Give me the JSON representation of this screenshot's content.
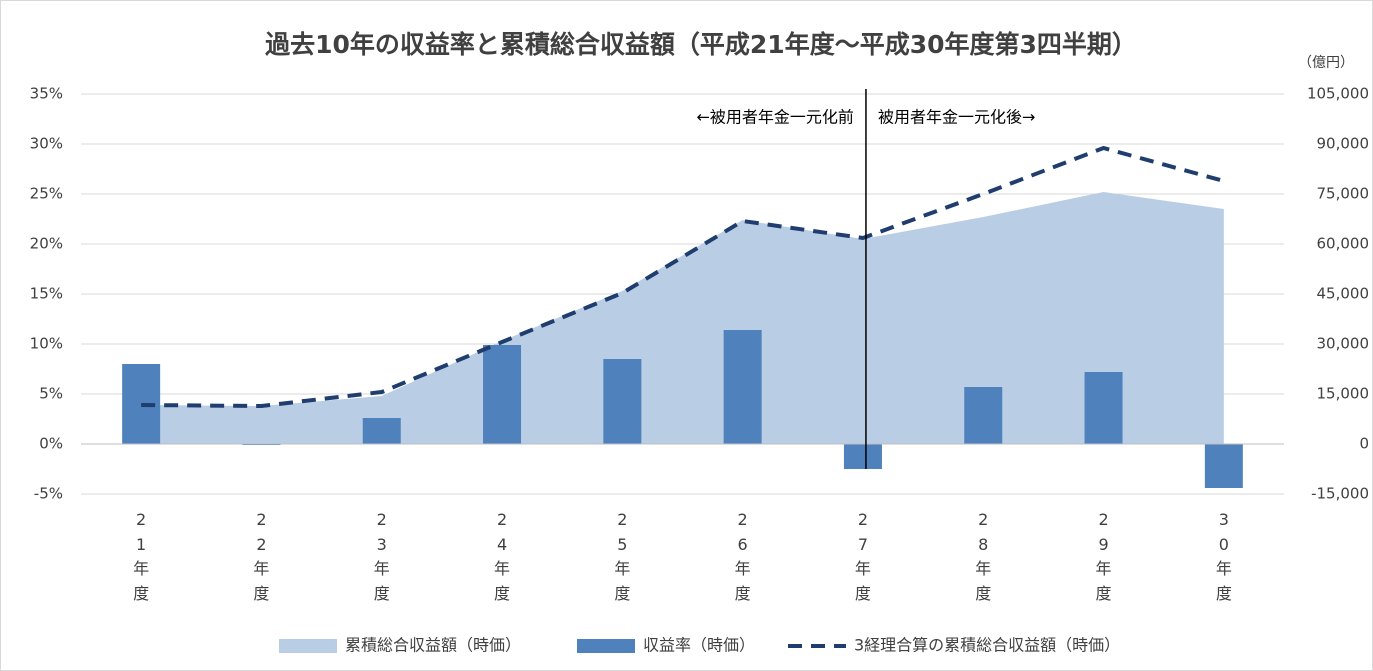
{
  "chart_data": {
    "type": "combo",
    "title": "過去10年の収益率と累積総合収益額（平成21年度～平成30年度第3四半期）",
    "y2_label": "（億円）",
    "annotations": [
      "←被用者年金一元化前",
      "被用者年金一元化後→"
    ],
    "categories": [
      "21年度",
      "22年度",
      "23年度",
      "24年度",
      "25年度",
      "26年度",
      "27年度",
      "28年度",
      "29年度",
      "30年度"
    ],
    "series": [
      {
        "name": "累積総合収益額（時価）",
        "type": "area",
        "axis": "y2",
        "color": "#b9cde5",
        "values": [
          11700,
          11400,
          14400,
          30900,
          45900,
          67200,
          61500,
          68100,
          75600,
          70500
        ]
      },
      {
        "name": "収益率（時価）",
        "type": "bar",
        "axis": "y",
        "color": "#4f81bd",
        "values": [
          8.0,
          -0.1,
          2.6,
          9.9,
          8.5,
          11.4,
          -2.5,
          5.7,
          7.2,
          -4.4
        ]
      },
      {
        "name": "3経理合算の累積総合収益額（時価）",
        "type": "line",
        "axis": "y2",
        "color": "#1f3d6e",
        "dashed": true,
        "values": [
          11700,
          11400,
          15600,
          30600,
          45300,
          66900,
          61800,
          75000,
          88800,
          78900
        ]
      }
    ],
    "ylim": [
      -5,
      35
    ],
    "yticks": [
      {
        "value": -5,
        "label": "-5%"
      },
      {
        "value": 0,
        "label": "0%"
      },
      {
        "value": 5,
        "label": "5%"
      },
      {
        "value": 10,
        "label": "10%"
      },
      {
        "value": 15,
        "label": "15%"
      },
      {
        "value": 20,
        "label": "20%"
      },
      {
        "value": 25,
        "label": "25%"
      },
      {
        "value": 30,
        "label": "30%"
      },
      {
        "value": 35,
        "label": "35%"
      }
    ],
    "y2lim": [
      -15000,
      105000
    ],
    "y2ticks": [
      {
        "value": -15000,
        "label": "-15,000"
      },
      0,
      {
        "value": 15000,
        "label": "15,000"
      },
      {
        "value": 30000,
        "label": "30,000"
      },
      {
        "value": 45000,
        "label": "45,000"
      },
      {
        "value": 60000,
        "label": "60,000"
      },
      {
        "value": 75000,
        "label": "75,000"
      },
      {
        "value": 90000,
        "label": "90,000"
      },
      {
        "value": 105000,
        "label": "105,000"
      }
    ],
    "grid": true,
    "legend": "bottom"
  }
}
